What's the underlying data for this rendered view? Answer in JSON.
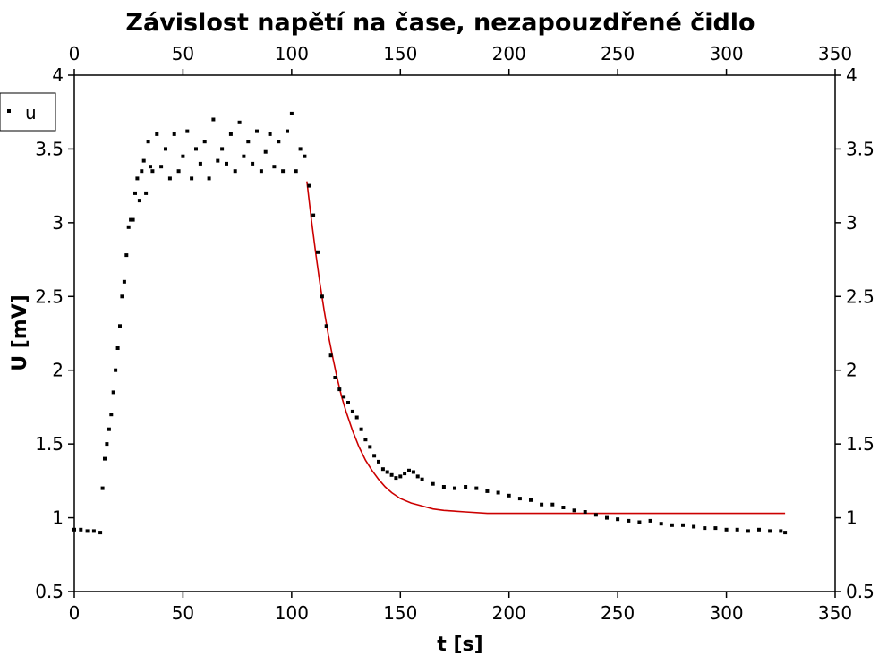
{
  "chart_data": {
    "type": "scatter",
    "title": "Závislost napětí na čase, nezapouzdřené čidlo",
    "xlabel": "t [s]",
    "ylabel": "U [mV]",
    "xlim": [
      0,
      350
    ],
    "ylim": [
      0.5,
      4
    ],
    "xticks": [
      "0",
      "50",
      "100",
      "150",
      "200",
      "250",
      "300",
      "350"
    ],
    "yticks": [
      "0.5",
      "1",
      "1.5",
      "2",
      "2.5",
      "3",
      "3.5",
      "4"
    ],
    "grid": false,
    "legend_position": "top-left",
    "series": [
      {
        "name": "u",
        "kind": "scatter",
        "color": "#000000",
        "x": [
          0,
          3,
          6,
          9,
          12,
          13,
          14,
          15,
          16,
          17,
          18,
          19,
          20,
          21,
          22,
          23,
          24,
          25,
          26,
          27,
          28,
          29,
          30,
          31,
          32,
          33,
          34,
          35,
          36,
          38,
          40,
          42,
          44,
          46,
          48,
          50,
          52,
          54,
          56,
          58,
          60,
          62,
          64,
          66,
          68,
          70,
          72,
          74,
          76,
          78,
          80,
          82,
          84,
          86,
          88,
          90,
          92,
          94,
          96,
          98,
          100,
          102,
          104,
          106,
          108,
          110,
          112,
          114,
          116,
          118,
          120,
          122,
          124,
          126,
          128,
          130,
          132,
          134,
          136,
          138,
          140,
          142,
          144,
          146,
          148,
          150,
          152,
          154,
          156,
          158,
          160,
          165,
          170,
          175,
          180,
          185,
          190,
          195,
          200,
          205,
          210,
          215,
          220,
          225,
          230,
          235,
          240,
          245,
          250,
          255,
          260,
          265,
          270,
          275,
          280,
          285,
          290,
          295,
          300,
          305,
          310,
          315,
          320,
          325,
          327
        ],
        "y": [
          0.92,
          0.92,
          0.91,
          0.91,
          0.9,
          1.2,
          1.4,
          1.5,
          1.6,
          1.7,
          1.85,
          2.0,
          2.15,
          2.3,
          2.5,
          2.6,
          2.78,
          2.97,
          3.02,
          3.02,
          3.2,
          3.3,
          3.15,
          3.35,
          3.42,
          3.2,
          3.55,
          3.38,
          3.35,
          3.6,
          3.38,
          3.5,
          3.3,
          3.6,
          3.35,
          3.45,
          3.62,
          3.3,
          3.5,
          3.4,
          3.55,
          3.3,
          3.7,
          3.42,
          3.5,
          3.4,
          3.6,
          3.35,
          3.68,
          3.45,
          3.55,
          3.4,
          3.62,
          3.35,
          3.48,
          3.6,
          3.38,
          3.55,
          3.35,
          3.62,
          3.74,
          3.35,
          3.5,
          3.45,
          3.25,
          3.05,
          2.8,
          2.5,
          2.3,
          2.1,
          1.95,
          1.87,
          1.82,
          1.78,
          1.72,
          1.68,
          1.6,
          1.53,
          1.48,
          1.42,
          1.38,
          1.33,
          1.31,
          1.29,
          1.27,
          1.28,
          1.3,
          1.32,
          1.31,
          1.28,
          1.26,
          1.23,
          1.21,
          1.2,
          1.21,
          1.2,
          1.18,
          1.17,
          1.15,
          1.13,
          1.12,
          1.09,
          1.09,
          1.07,
          1.05,
          1.04,
          1.02,
          1.0,
          0.99,
          0.98,
          0.97,
          0.98,
          0.96,
          0.95,
          0.95,
          0.94,
          0.93,
          0.93,
          0.92,
          0.92,
          0.91,
          0.92,
          0.91,
          0.91,
          0.9
        ]
      },
      {
        "name": "",
        "kind": "line",
        "color": "#cc0000",
        "x": [
          107,
          109,
          111,
          113,
          115,
          117,
          119,
          121,
          123,
          125,
          128,
          131,
          134,
          137,
          140,
          143,
          146,
          150,
          155,
          160,
          165,
          170,
          180,
          190,
          200,
          210,
          220,
          230,
          250,
          270,
          290,
          310,
          327
        ],
        "y": [
          3.28,
          3.03,
          2.8,
          2.59,
          2.4,
          2.23,
          2.08,
          1.94,
          1.82,
          1.72,
          1.59,
          1.48,
          1.39,
          1.32,
          1.26,
          1.21,
          1.17,
          1.13,
          1.1,
          1.08,
          1.06,
          1.05,
          1.04,
          1.03,
          1.03,
          1.03,
          1.03,
          1.03,
          1.03,
          1.03,
          1.03,
          1.03,
          1.03
        ]
      }
    ]
  }
}
